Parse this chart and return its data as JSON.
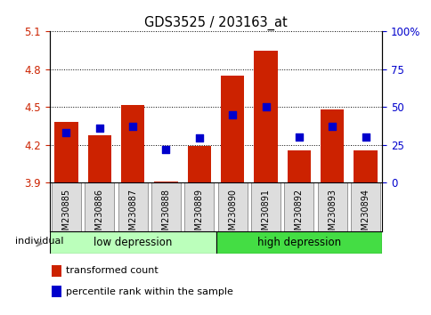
{
  "title": "GDS3525 / 203163_at",
  "categories": [
    "GSM230885",
    "GSM230886",
    "GSM230887",
    "GSM230888",
    "GSM230889",
    "GSM230890",
    "GSM230891",
    "GSM230892",
    "GSM230893",
    "GSM230894"
  ],
  "red_bar_values": [
    4.38,
    4.28,
    4.52,
    3.91,
    4.19,
    4.75,
    4.95,
    4.16,
    4.48,
    4.16
  ],
  "blue_sq_values": [
    4.295,
    4.33,
    4.345,
    4.165,
    4.255,
    4.44,
    4.5,
    4.265,
    4.345,
    4.26
  ],
  "ylim": [
    3.9,
    5.1
  ],
  "y2lim": [
    0,
    100
  ],
  "yticks": [
    3.9,
    4.2,
    4.5,
    4.8,
    5.1
  ],
  "y2ticks": [
    0,
    25,
    50,
    75,
    100
  ],
  "y2tick_labels": [
    "0",
    "25",
    "50",
    "75",
    "100%"
  ],
  "bar_color": "#CC2200",
  "sq_color": "#0000CC",
  "baseline": 3.9,
  "group1_label": "low depression",
  "group2_label": "high depression",
  "legend_red": "transformed count",
  "legend_blue": "percentile rank within the sample",
  "individual_label": "individual",
  "group1_color": "#BBFFBB",
  "group2_color": "#44DD44",
  "xtick_box_color": "#DDDDDD",
  "bar_width": 0.7,
  "sq_size": 30
}
